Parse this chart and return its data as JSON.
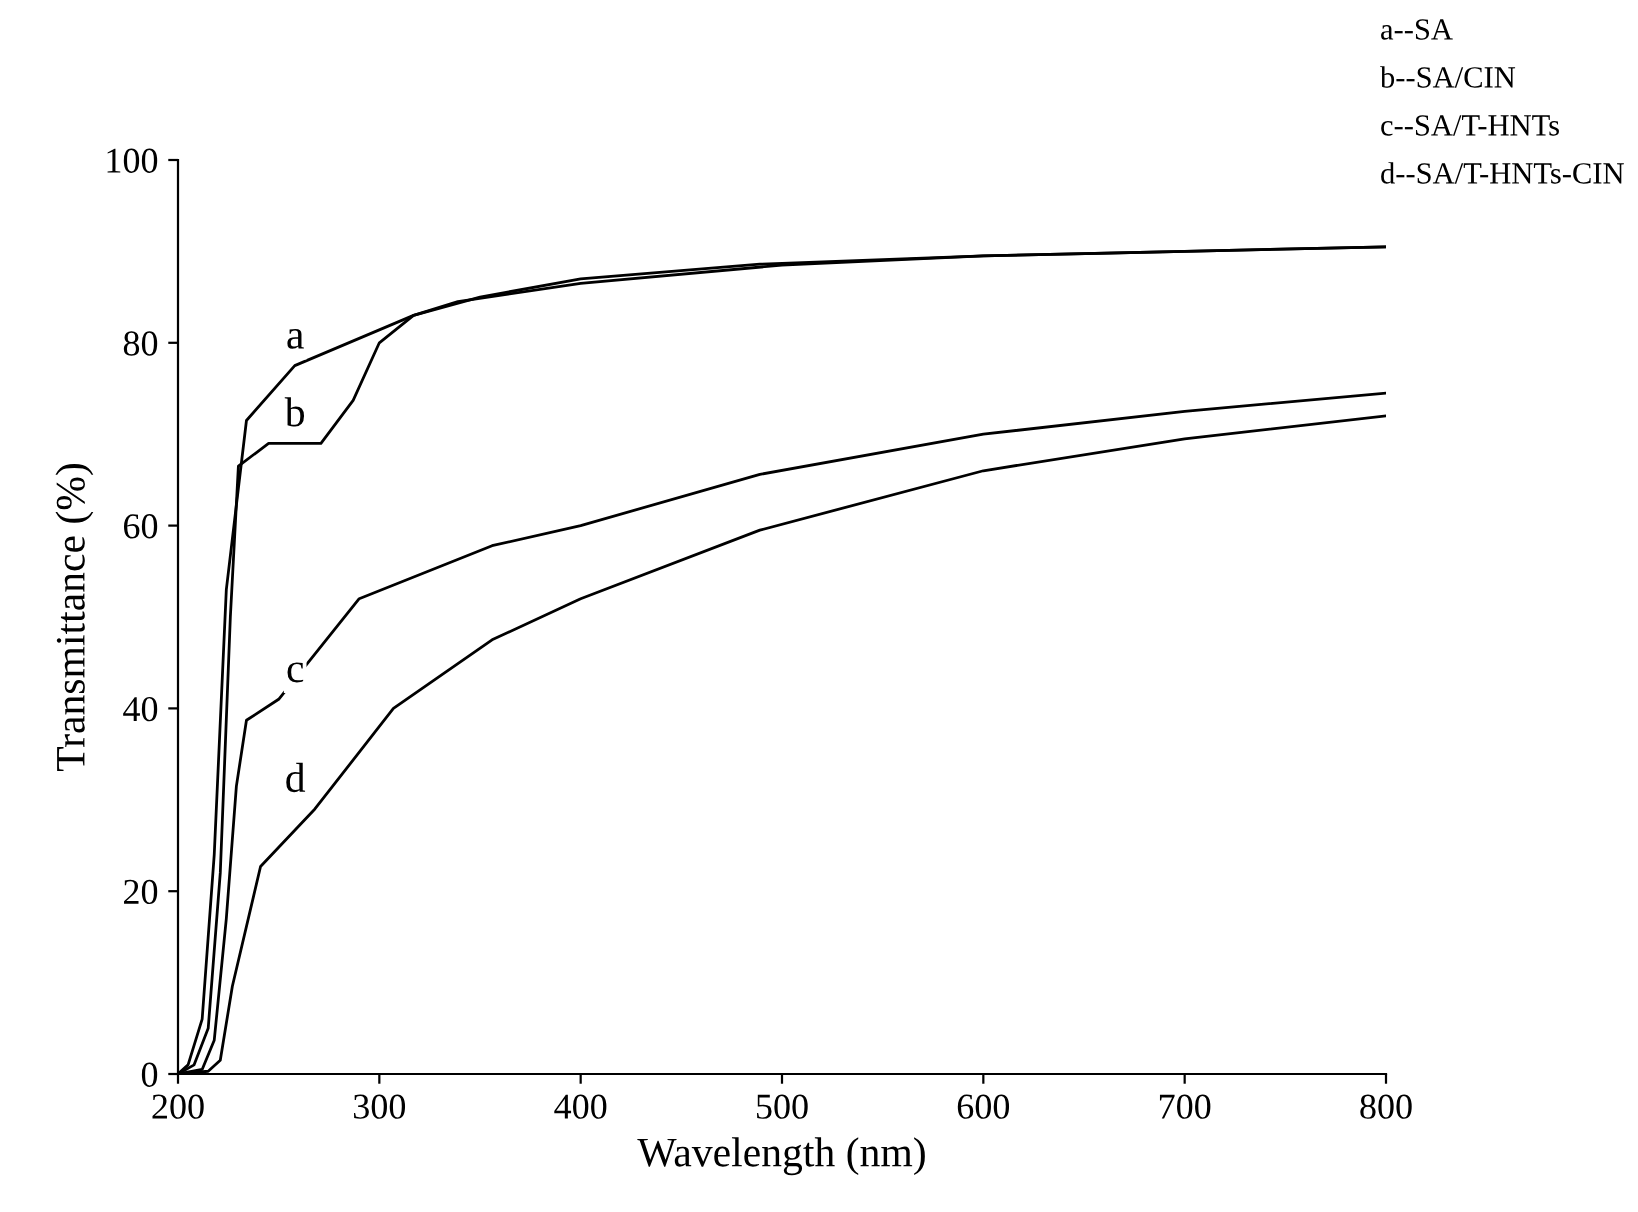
{
  "chart_data": {
    "type": "line",
    "xlabel": "Wavelength (nm)",
    "ylabel": "Transmittance (%)",
    "xlim": [
      200,
      800
    ],
    "xticks": [
      200,
      300,
      400,
      500,
      600,
      700,
      800
    ],
    "ylim": [
      0,
      100
    ],
    "yticks": [
      0,
      20,
      40,
      60,
      80,
      100
    ],
    "grid": false,
    "legend": false,
    "marker": "none",
    "line_style": "solid",
    "series": [
      {
        "name": "a",
        "color": "#000000",
        "x": [
          200,
          205,
          212,
          218,
          224,
          234,
          258,
          317,
          350,
          400,
          489,
          600,
          700,
          800
        ],
        "values": [
          0,
          1,
          6,
          24,
          53,
          71.5,
          77.5,
          83,
          85,
          87,
          88.6,
          89.5,
          90,
          90.5
        ]
      },
      {
        "name": "b",
        "color": "#000000",
        "x": [
          200,
          208,
          215,
          221,
          226,
          230,
          245,
          258,
          271,
          287,
          300,
          317,
          339,
          400,
          500,
          600,
          700,
          800
        ],
        "values": [
          0,
          1,
          5,
          22,
          50,
          66.5,
          69,
          69,
          69,
          73.7,
          80,
          83,
          84.5,
          86.5,
          88.5,
          89.5,
          90,
          90.5
        ]
      },
      {
        "name": "c",
        "color": "#000000",
        "x": [
          200,
          212,
          218,
          224,
          229,
          234,
          250,
          290,
          356,
          400,
          489,
          600,
          700,
          800
        ],
        "values": [
          0,
          0.5,
          3.7,
          17,
          31.5,
          38.7,
          41,
          52,
          57.8,
          60,
          65.6,
          70,
          72.5,
          74.5
        ]
      },
      {
        "name": "d",
        "color": "#000000",
        "x": [
          200,
          215,
          221,
          227,
          241,
          268,
          307,
          356,
          400,
          489,
          600,
          700,
          800
        ],
        "values": [
          0,
          0.3,
          1.5,
          9.6,
          22.7,
          29,
          40,
          47.5,
          52,
          59.5,
          66,
          69.5,
          72
        ]
      }
    ],
    "annotations": [
      "a--SA",
      "b--SA/CIN",
      "c--SA/T-HNTs",
      "d--SA/T-HNTs-CIN"
    ]
  }
}
